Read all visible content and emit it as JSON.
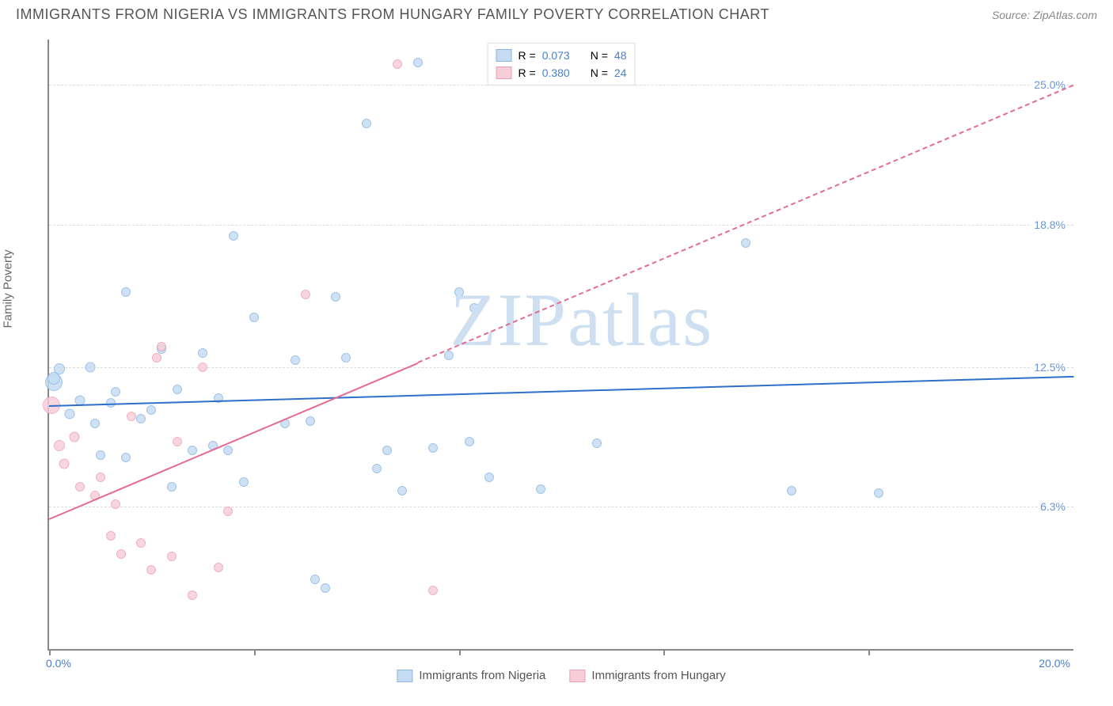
{
  "title": "IMMIGRANTS FROM NIGERIA VS IMMIGRANTS FROM HUNGARY FAMILY POVERTY CORRELATION CHART",
  "source_label": "Source:",
  "source_value": "ZipAtlas.com",
  "ylabel": "Family Poverty",
  "watermark": {
    "zip": "ZIP",
    "atlas": "atlas",
    "color": "#cddff1"
  },
  "chart": {
    "type": "scatter",
    "xlim": [
      0,
      20
    ],
    "ylim": [
      0,
      27
    ],
    "x_start_label": "0.0%",
    "x_end_label": "20.0%",
    "x_ticks": [
      0,
      4,
      8,
      12,
      16
    ],
    "y_gridlines": [
      {
        "value": 6.3,
        "label": "6.3%"
      },
      {
        "value": 12.5,
        "label": "12.5%"
      },
      {
        "value": 18.8,
        "label": "18.8%"
      },
      {
        "value": 25.0,
        "label": "25.0%"
      }
    ],
    "grid_color": "#dcdcdc",
    "axis_color": "#888888",
    "series": [
      {
        "id": "nigeria",
        "name": "Immigrants from Nigeria",
        "fill": "#c5dbf2",
        "stroke": "#8db6e2",
        "r_label": "R =",
        "r_value": "0.073",
        "n_label": "N =",
        "n_value": "48",
        "trend": {
          "color": "#2e6fc9",
          "y_at_xmin": 10.8,
          "y_at_xmax": 12.1,
          "solid_until_x": 20
        },
        "points": [
          {
            "x": 0.1,
            "y": 11.8,
            "s": 22
          },
          {
            "x": 0.1,
            "y": 12.0,
            "s": 16
          },
          {
            "x": 0.2,
            "y": 12.4,
            "s": 14
          },
          {
            "x": 0.4,
            "y": 10.4,
            "s": 13
          },
          {
            "x": 0.6,
            "y": 11.0,
            "s": 13
          },
          {
            "x": 0.8,
            "y": 12.5,
            "s": 13
          },
          {
            "x": 0.9,
            "y": 10.0,
            "s": 12
          },
          {
            "x": 1.0,
            "y": 8.6,
            "s": 12
          },
          {
            "x": 1.2,
            "y": 10.9,
            "s": 12
          },
          {
            "x": 1.3,
            "y": 11.4,
            "s": 12
          },
          {
            "x": 1.5,
            "y": 8.5,
            "s": 12
          },
          {
            "x": 1.5,
            "y": 15.8,
            "s": 12
          },
          {
            "x": 1.8,
            "y": 10.2,
            "s": 12
          },
          {
            "x": 2.0,
            "y": 10.6,
            "s": 12
          },
          {
            "x": 2.2,
            "y": 13.3,
            "s": 12
          },
          {
            "x": 2.4,
            "y": 7.2,
            "s": 12
          },
          {
            "x": 2.5,
            "y": 11.5,
            "s": 12
          },
          {
            "x": 2.8,
            "y": 8.8,
            "s": 12
          },
          {
            "x": 3.0,
            "y": 13.1,
            "s": 12
          },
          {
            "x": 3.2,
            "y": 9.0,
            "s": 12
          },
          {
            "x": 3.3,
            "y": 11.1,
            "s": 12
          },
          {
            "x": 3.5,
            "y": 8.8,
            "s": 12
          },
          {
            "x": 3.6,
            "y": 18.3,
            "s": 12
          },
          {
            "x": 3.8,
            "y": 7.4,
            "s": 12
          },
          {
            "x": 4.0,
            "y": 14.7,
            "s": 12
          },
          {
            "x": 4.6,
            "y": 10.0,
            "s": 12
          },
          {
            "x": 4.8,
            "y": 12.8,
            "s": 12
          },
          {
            "x": 5.1,
            "y": 10.1,
            "s": 12
          },
          {
            "x": 5.2,
            "y": 3.1,
            "s": 12
          },
          {
            "x": 5.4,
            "y": 2.7,
            "s": 12
          },
          {
            "x": 5.6,
            "y": 15.6,
            "s": 12
          },
          {
            "x": 5.8,
            "y": 12.9,
            "s": 12
          },
          {
            "x": 6.2,
            "y": 23.3,
            "s": 12
          },
          {
            "x": 6.4,
            "y": 8.0,
            "s": 12
          },
          {
            "x": 6.6,
            "y": 8.8,
            "s": 12
          },
          {
            "x": 6.9,
            "y": 7.0,
            "s": 12
          },
          {
            "x": 7.2,
            "y": 26.0,
            "s": 12
          },
          {
            "x": 7.5,
            "y": 8.9,
            "s": 12
          },
          {
            "x": 7.8,
            "y": 13.0,
            "s": 12
          },
          {
            "x": 8.0,
            "y": 15.8,
            "s": 12
          },
          {
            "x": 8.2,
            "y": 9.2,
            "s": 12
          },
          {
            "x": 8.3,
            "y": 15.1,
            "s": 12
          },
          {
            "x": 8.6,
            "y": 7.6,
            "s": 12
          },
          {
            "x": 9.6,
            "y": 7.1,
            "s": 12
          },
          {
            "x": 10.7,
            "y": 9.1,
            "s": 12
          },
          {
            "x": 13.6,
            "y": 18.0,
            "s": 12
          },
          {
            "x": 14.5,
            "y": 7.0,
            "s": 12
          },
          {
            "x": 16.2,
            "y": 6.9,
            "s": 12
          }
        ]
      },
      {
        "id": "hungary",
        "name": "Immigrants from Hungary",
        "fill": "#f7cdd8",
        "stroke": "#eaa1b5",
        "r_label": "R =",
        "r_value": "0.380",
        "n_label": "N =",
        "n_value": "24",
        "trend": {
          "color": "#e56b90",
          "y_at_xmin": 5.8,
          "y_at_xmax": 25.0,
          "solid_until_x": 7.2
        },
        "points": [
          {
            "x": 0.05,
            "y": 10.8,
            "s": 22
          },
          {
            "x": 0.2,
            "y": 9.0,
            "s": 14
          },
          {
            "x": 0.3,
            "y": 8.2,
            "s": 13
          },
          {
            "x": 0.5,
            "y": 9.4,
            "s": 13
          },
          {
            "x": 0.6,
            "y": 7.2,
            "s": 12
          },
          {
            "x": 0.9,
            "y": 6.8,
            "s": 12
          },
          {
            "x": 1.0,
            "y": 7.6,
            "s": 12
          },
          {
            "x": 1.2,
            "y": 5.0,
            "s": 12
          },
          {
            "x": 1.3,
            "y": 6.4,
            "s": 12
          },
          {
            "x": 1.4,
            "y": 4.2,
            "s": 12
          },
          {
            "x": 1.6,
            "y": 10.3,
            "s": 12
          },
          {
            "x": 1.8,
            "y": 4.7,
            "s": 12
          },
          {
            "x": 2.0,
            "y": 3.5,
            "s": 12
          },
          {
            "x": 2.1,
            "y": 12.9,
            "s": 12
          },
          {
            "x": 2.2,
            "y": 13.4,
            "s": 12
          },
          {
            "x": 2.4,
            "y": 4.1,
            "s": 12
          },
          {
            "x": 2.5,
            "y": 9.2,
            "s": 12
          },
          {
            "x": 2.8,
            "y": 2.4,
            "s": 12
          },
          {
            "x": 3.0,
            "y": 12.5,
            "s": 12
          },
          {
            "x": 3.3,
            "y": 3.6,
            "s": 12
          },
          {
            "x": 3.5,
            "y": 6.1,
            "s": 12
          },
          {
            "x": 5.0,
            "y": 15.7,
            "s": 12
          },
          {
            "x": 6.8,
            "y": 25.9,
            "s": 12
          },
          {
            "x": 7.5,
            "y": 2.6,
            "s": 12
          }
        ]
      }
    ]
  },
  "colors": {
    "title": "#555555",
    "source": "#888888",
    "value_text": "#4a7fc8",
    "label_text": "#666666"
  }
}
